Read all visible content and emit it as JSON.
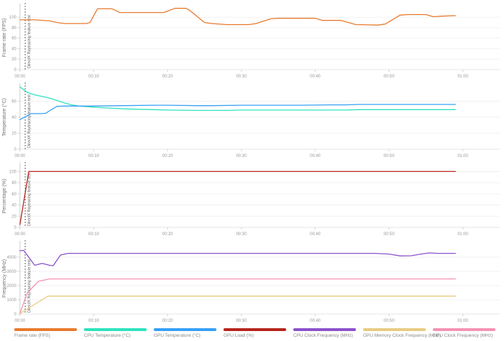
{
  "annotation_label": "DirectX Raytracing feature test",
  "time_axis": {
    "tick_labels": [
      "00:00",
      "00:10",
      "00:20",
      "00:30",
      "00:40",
      "00:50",
      "01:00"
    ],
    "tick_seconds": [
      0,
      10,
      20,
      30,
      40,
      50,
      60
    ],
    "max_seconds": 65,
    "annotation_second": 0.7
  },
  "colors": {
    "frame_rate": "#e87a2e",
    "cpu_temp": "#2de3bd",
    "gpu_temp": "#36a0f5",
    "gpu_load": "#b5241c",
    "cpu_clock": "#8a52cc",
    "gpu_mem_clock": "#e9cb81",
    "gpu_clock": "#f592b4",
    "grid": "#ededed",
    "axis": "#c8c8c8",
    "tick_text": "#9a9a9a",
    "axis_title": "#707070",
    "annotation": "#555555"
  },
  "legend": {
    "items": [
      {
        "label": "Frame rate (FPS)",
        "color": "#e87a2e"
      },
      {
        "label": "CPU Temperature (°C)",
        "color": "#2de3bd"
      },
      {
        "label": "GPU Temperature (°C)",
        "color": "#36a0f5"
      },
      {
        "label": "GPU Load (%)",
        "color": "#b5241c"
      },
      {
        "label": "CPU Clock Frequency (MHz)",
        "color": "#8a52cc"
      },
      {
        "label": "GPU Memory Clock Frequency (MHz)",
        "color": "#e9cb81"
      },
      {
        "label": "GPU Clock Frequency (MHz)",
        "color": "#f592b4"
      }
    ]
  },
  "chart_data": [
    {
      "type": "line",
      "ylabel": "Frame rate (FPS)",
      "ylim": [
        0,
        122
      ],
      "yticks": [
        0,
        20,
        40,
        60,
        80,
        100
      ],
      "grid": true,
      "series": [
        {
          "name": "Frame rate (FPS)",
          "color": "#e87a2e",
          "points": [
            [
              0,
              95
            ],
            [
              2,
              95
            ],
            [
              4,
              93
            ],
            [
              5,
              90
            ],
            [
              6,
              88
            ],
            [
              9,
              88
            ],
            [
              9.5,
              90
            ],
            [
              10.5,
              116
            ],
            [
              12.5,
              116
            ],
            [
              13.5,
              109
            ],
            [
              19.5,
              109
            ],
            [
              21,
              117
            ],
            [
              22.5,
              117
            ],
            [
              23,
              113
            ],
            [
              25,
              90
            ],
            [
              26,
              88
            ],
            [
              28,
              86
            ],
            [
              31,
              86
            ],
            [
              32,
              88
            ],
            [
              34,
              97
            ],
            [
              35,
              98
            ],
            [
              40,
              98
            ],
            [
              41,
              94
            ],
            [
              43.5,
              94
            ],
            [
              45.5,
              86
            ],
            [
              48.5,
              85
            ],
            [
              49.5,
              87
            ],
            [
              51.5,
              104
            ],
            [
              52.5,
              105
            ],
            [
              55,
              105
            ],
            [
              56,
              101
            ],
            [
              57,
              102
            ],
            [
              59,
              103
            ]
          ]
        }
      ]
    },
    {
      "type": "line",
      "ylabel": "Temperature (°C)",
      "ylim": [
        0,
        80
      ],
      "yticks": [
        0,
        20,
        40,
        60
      ],
      "grid": true,
      "series": [
        {
          "name": "CPU Temperature (°C)",
          "color": "#2de3bd",
          "points": [
            [
              0,
              78
            ],
            [
              1,
              71
            ],
            [
              2,
              68
            ],
            [
              3,
              66
            ],
            [
              4,
              64
            ],
            [
              5,
              61
            ],
            [
              6,
              58
            ],
            [
              7,
              55.5
            ],
            [
              8,
              54
            ],
            [
              10,
              52.5
            ],
            [
              12,
              51.5
            ],
            [
              14,
              50.5
            ],
            [
              16,
              50
            ],
            [
              18,
              49.5
            ],
            [
              20,
              49
            ],
            [
              24,
              48.5
            ],
            [
              28,
              48.5
            ],
            [
              30,
              49
            ],
            [
              36,
              49
            ],
            [
              40,
              49
            ],
            [
              44,
              49
            ],
            [
              46,
              49.5
            ],
            [
              50,
              49.5
            ],
            [
              54,
              49.5
            ],
            [
              59,
              49.5
            ]
          ]
        },
        {
          "name": "GPU Temperature (°C)",
          "color": "#36a0f5",
          "points": [
            [
              0,
              37
            ],
            [
              1,
              42
            ],
            [
              1.5,
              44.5
            ],
            [
              3,
              44.5
            ],
            [
              3.5,
              45
            ],
            [
              4,
              48
            ],
            [
              5,
              53.5
            ],
            [
              6,
              54
            ],
            [
              10,
              54
            ],
            [
              14,
              54.5
            ],
            [
              18,
              55
            ],
            [
              20,
              55
            ],
            [
              24,
              54.5
            ],
            [
              26,
              54.5
            ],
            [
              30,
              55
            ],
            [
              34,
              55
            ],
            [
              38,
              55
            ],
            [
              42,
              55.5
            ],
            [
              44,
              55.5
            ],
            [
              46,
              56
            ],
            [
              50,
              56
            ],
            [
              54,
              56
            ],
            [
              59,
              56
            ]
          ]
        }
      ]
    },
    {
      "type": "line",
      "ylabel": "Percentage (%)",
      "ylim": [
        0,
        112
      ],
      "yticks": [
        0,
        20,
        40,
        60,
        80,
        100
      ],
      "grid": true,
      "series": [
        {
          "name": "GPU Load (%)",
          "color": "#b5241c",
          "points": [
            [
              0,
              5
            ],
            [
              1.2,
              100
            ],
            [
              59,
              100
            ]
          ]
        }
      ]
    },
    {
      "type": "line",
      "ylabel": "Frequency (MHz)",
      "ylim": [
        0,
        5000
      ],
      "yticks": [
        0,
        1000,
        2000,
        3000,
        4000
      ],
      "grid": true,
      "series": [
        {
          "name": "CPU Clock Frequency (MHz)",
          "color": "#8a52cc",
          "points": [
            [
              0,
              4450
            ],
            [
              0.5,
              4480
            ],
            [
              2,
              3430
            ],
            [
              3,
              3560
            ],
            [
              4,
              3430
            ],
            [
              4.5,
              3400
            ],
            [
              5.5,
              4150
            ],
            [
              6.5,
              4270
            ],
            [
              10,
              4270
            ],
            [
              20,
              4270
            ],
            [
              30,
              4270
            ],
            [
              40,
              4270
            ],
            [
              48,
              4270
            ],
            [
              50,
              4220
            ],
            [
              51.5,
              4090
            ],
            [
              53,
              4100
            ],
            [
              54.5,
              4230
            ],
            [
              55.5,
              4300
            ],
            [
              56.5,
              4270
            ],
            [
              59,
              4270
            ]
          ]
        },
        {
          "name": "GPU Memory Clock Frequency (MHz)",
          "color": "#e9cb81",
          "points": [
            [
              0,
              30
            ],
            [
              0.8,
              300
            ],
            [
              3.8,
              1260
            ],
            [
              10,
              1260
            ],
            [
              59,
              1260
            ]
          ]
        },
        {
          "name": "GPU Clock Frequency (MHz)",
          "color": "#f592b4",
          "points": [
            [
              0,
              60
            ],
            [
              1,
              1500
            ],
            [
              2.5,
              2300
            ],
            [
              4,
              2470
            ],
            [
              10,
              2470
            ],
            [
              59,
              2470
            ]
          ]
        }
      ]
    }
  ]
}
